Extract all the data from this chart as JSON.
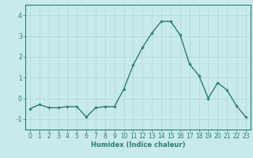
{
  "x": [
    0,
    1,
    2,
    3,
    4,
    5,
    6,
    7,
    8,
    9,
    10,
    11,
    12,
    13,
    14,
    15,
    16,
    17,
    18,
    19,
    20,
    21,
    22,
    23
  ],
  "y": [
    -0.5,
    -0.3,
    -0.45,
    -0.45,
    -0.4,
    -0.4,
    -0.9,
    -0.45,
    -0.4,
    -0.4,
    0.45,
    1.6,
    2.45,
    3.15,
    3.7,
    3.7,
    3.05,
    1.65,
    1.1,
    0.0,
    0.75,
    0.4,
    -0.35,
    -0.9
  ],
  "line_color": "#2e7d6e",
  "marker": "D",
  "marker_size": 1.8,
  "bg_color": "#c8eaea",
  "grid_color": "#b0d4d4",
  "axes_color": "#2e7d6e",
  "xlabel": "Humidex (Indice chaleur)",
  "xlabel_fontsize": 6.0,
  "ylim": [
    -1.5,
    4.5
  ],
  "xlim": [
    -0.5,
    23.5
  ],
  "yticks": [
    -1,
    0,
    1,
    2,
    3,
    4
  ],
  "xticks": [
    0,
    1,
    2,
    3,
    4,
    5,
    6,
    7,
    8,
    9,
    10,
    11,
    12,
    13,
    14,
    15,
    16,
    17,
    18,
    19,
    20,
    21,
    22,
    23
  ],
  "tick_fontsize": 5.5,
  "linewidth": 1.0
}
